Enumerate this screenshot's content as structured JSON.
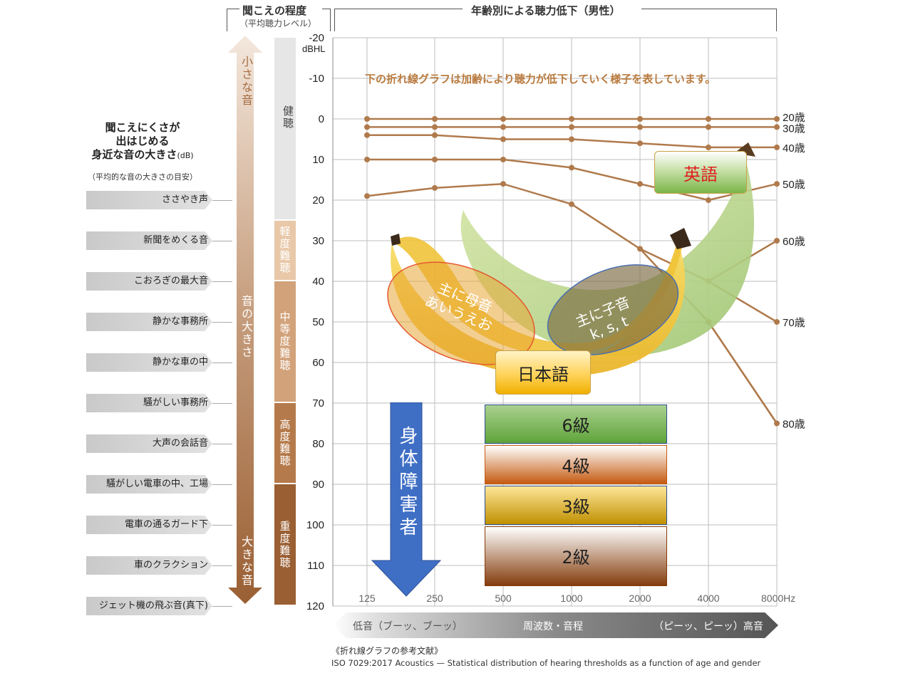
{
  "header": {
    "left_title": "聞こえの程度",
    "left_subtitle": "（平均聴力レベル）",
    "right_title": "年齢別による聴力低下（男性）"
  },
  "left_panel": {
    "title_lines": [
      "聞こえにくさが",
      "出はじめる",
      "身近な音の大きさ"
    ],
    "title_unit": "(dB)",
    "note": "（平均的な音の大きさの目安）",
    "sounds": [
      {
        "label": "ささやき声",
        "db": 20
      },
      {
        "label": "新聞をめくる音",
        "db": 30
      },
      {
        "label": "こおろぎの最大音",
        "db": 40
      },
      {
        "label": "静かな事務所",
        "db": 50
      },
      {
        "label": "静かな車の中",
        "db": 60
      },
      {
        "label": "騒がしい事務所",
        "db": 70
      },
      {
        "label": "大声の会話音",
        "db": 80
      },
      {
        "label": "騒がしい電車の中、工場",
        "db": 90
      },
      {
        "label": "電車の通るガード下",
        "db": 100
      },
      {
        "label": "車のクラクション",
        "db": 110
      },
      {
        "label": "ジェット機の飛ぶ音(真下)",
        "db": 120
      }
    ],
    "arrow_top": "小さな音",
    "arrow_mid": "音の大きさ",
    "arrow_bottom": "大きな音"
  },
  "bands": [
    {
      "label": "健聴",
      "from": -20,
      "to": 25,
      "color": "#e6e6e6"
    },
    {
      "label": "軽度難聴",
      "from": 25,
      "to": 40,
      "color": "#e8c8a8"
    },
    {
      "label": "中等度難聴",
      "from": 40,
      "to": 70,
      "color": "#d2a27a"
    },
    {
      "label": "高度難聴",
      "from": 70,
      "to": 90,
      "color": "#b57a4b"
    },
    {
      "label": "重度難聴",
      "from": 90,
      "to": 120,
      "color": "#9a5f33"
    }
  ],
  "hint": "下の折れ線グラフは加齢により聴力が低下していく様子を表しています。",
  "annotations": {
    "english": "英語",
    "japanese": "日本語",
    "vowels": [
      "主に母音",
      "あいうえお"
    ],
    "consonants": [
      "主に子音",
      "k, s, t"
    ],
    "disability": "身体障害者",
    "grades": [
      {
        "label": "6級",
        "from": 70,
        "to": 80,
        "color_top": "#a9d08e",
        "color_bottom": "#5fa43a",
        "border": "#2f4f8f"
      },
      {
        "label": "4級",
        "from": 80,
        "to": 90,
        "color_top": "#ffffff",
        "color_bottom": "#c55a11",
        "border": "#c55a11"
      },
      {
        "label": "3級",
        "from": 90,
        "to": 100,
        "color_top": "#ffe699",
        "color_bottom": "#bf9000",
        "border": "#2f4f8f"
      },
      {
        "label": "2級",
        "from": 100,
        "to": 115,
        "color_top": "#ffffff",
        "color_bottom": "#843c0c",
        "border": "#843c0c"
      }
    ]
  },
  "chart_data": {
    "type": "line",
    "title": "年齢別による聴力低下（男性）",
    "xlabel": "周波数・音程",
    "ylabel": "dBHL",
    "x": [
      125,
      250,
      500,
      1000,
      2000,
      4000,
      8000
    ],
    "x_tick_labels": [
      "125",
      "250",
      "500",
      "1000",
      "2000",
      "4000",
      "8000Hz"
    ],
    "y_ticks": [
      -20,
      -10,
      0,
      10,
      20,
      30,
      40,
      50,
      60,
      70,
      80,
      90,
      100,
      110,
      120
    ],
    "y_unit": "dBHL",
    "ylim": [
      -20,
      120
    ],
    "y_inverted": true,
    "x_scale": "log",
    "grid": true,
    "series_color": "#b07a4c",
    "series": [
      {
        "name": "20歳",
        "values": [
          0,
          0,
          0,
          0,
          0,
          0,
          0
        ]
      },
      {
        "name": "30歳",
        "values": [
          2,
          2,
          2,
          2,
          2,
          2,
          2
        ]
      },
      {
        "name": "40歳",
        "values": [
          4,
          4,
          5,
          5,
          6,
          7,
          7
        ]
      },
      {
        "name": "50歳",
        "values": [
          10,
          10,
          10,
          12,
          16,
          20,
          16
        ]
      },
      {
        "name": "60歳",
        "values": [
          19,
          17,
          16,
          21,
          32,
          40,
          30
        ]
      },
      {
        "name": "70歳",
        "values": [
          null,
          null,
          null,
          null,
          null,
          null,
          50
        ]
      },
      {
        "name": "80歳",
        "values": [
          null,
          null,
          null,
          null,
          null,
          50,
          75
        ]
      }
    ],
    "x_axis_bar": {
      "left": "低音（ブーッ、ブーッ）",
      "center": "周波数・音程",
      "right": "（ピーッ、ピーッ）高音"
    }
  },
  "reference": {
    "title": "《折れ線グラフの参考文献》",
    "text": "ISO 7029:2017 Acoustics — Statistical distribution of hearing thresholds as a function of age and gender"
  }
}
